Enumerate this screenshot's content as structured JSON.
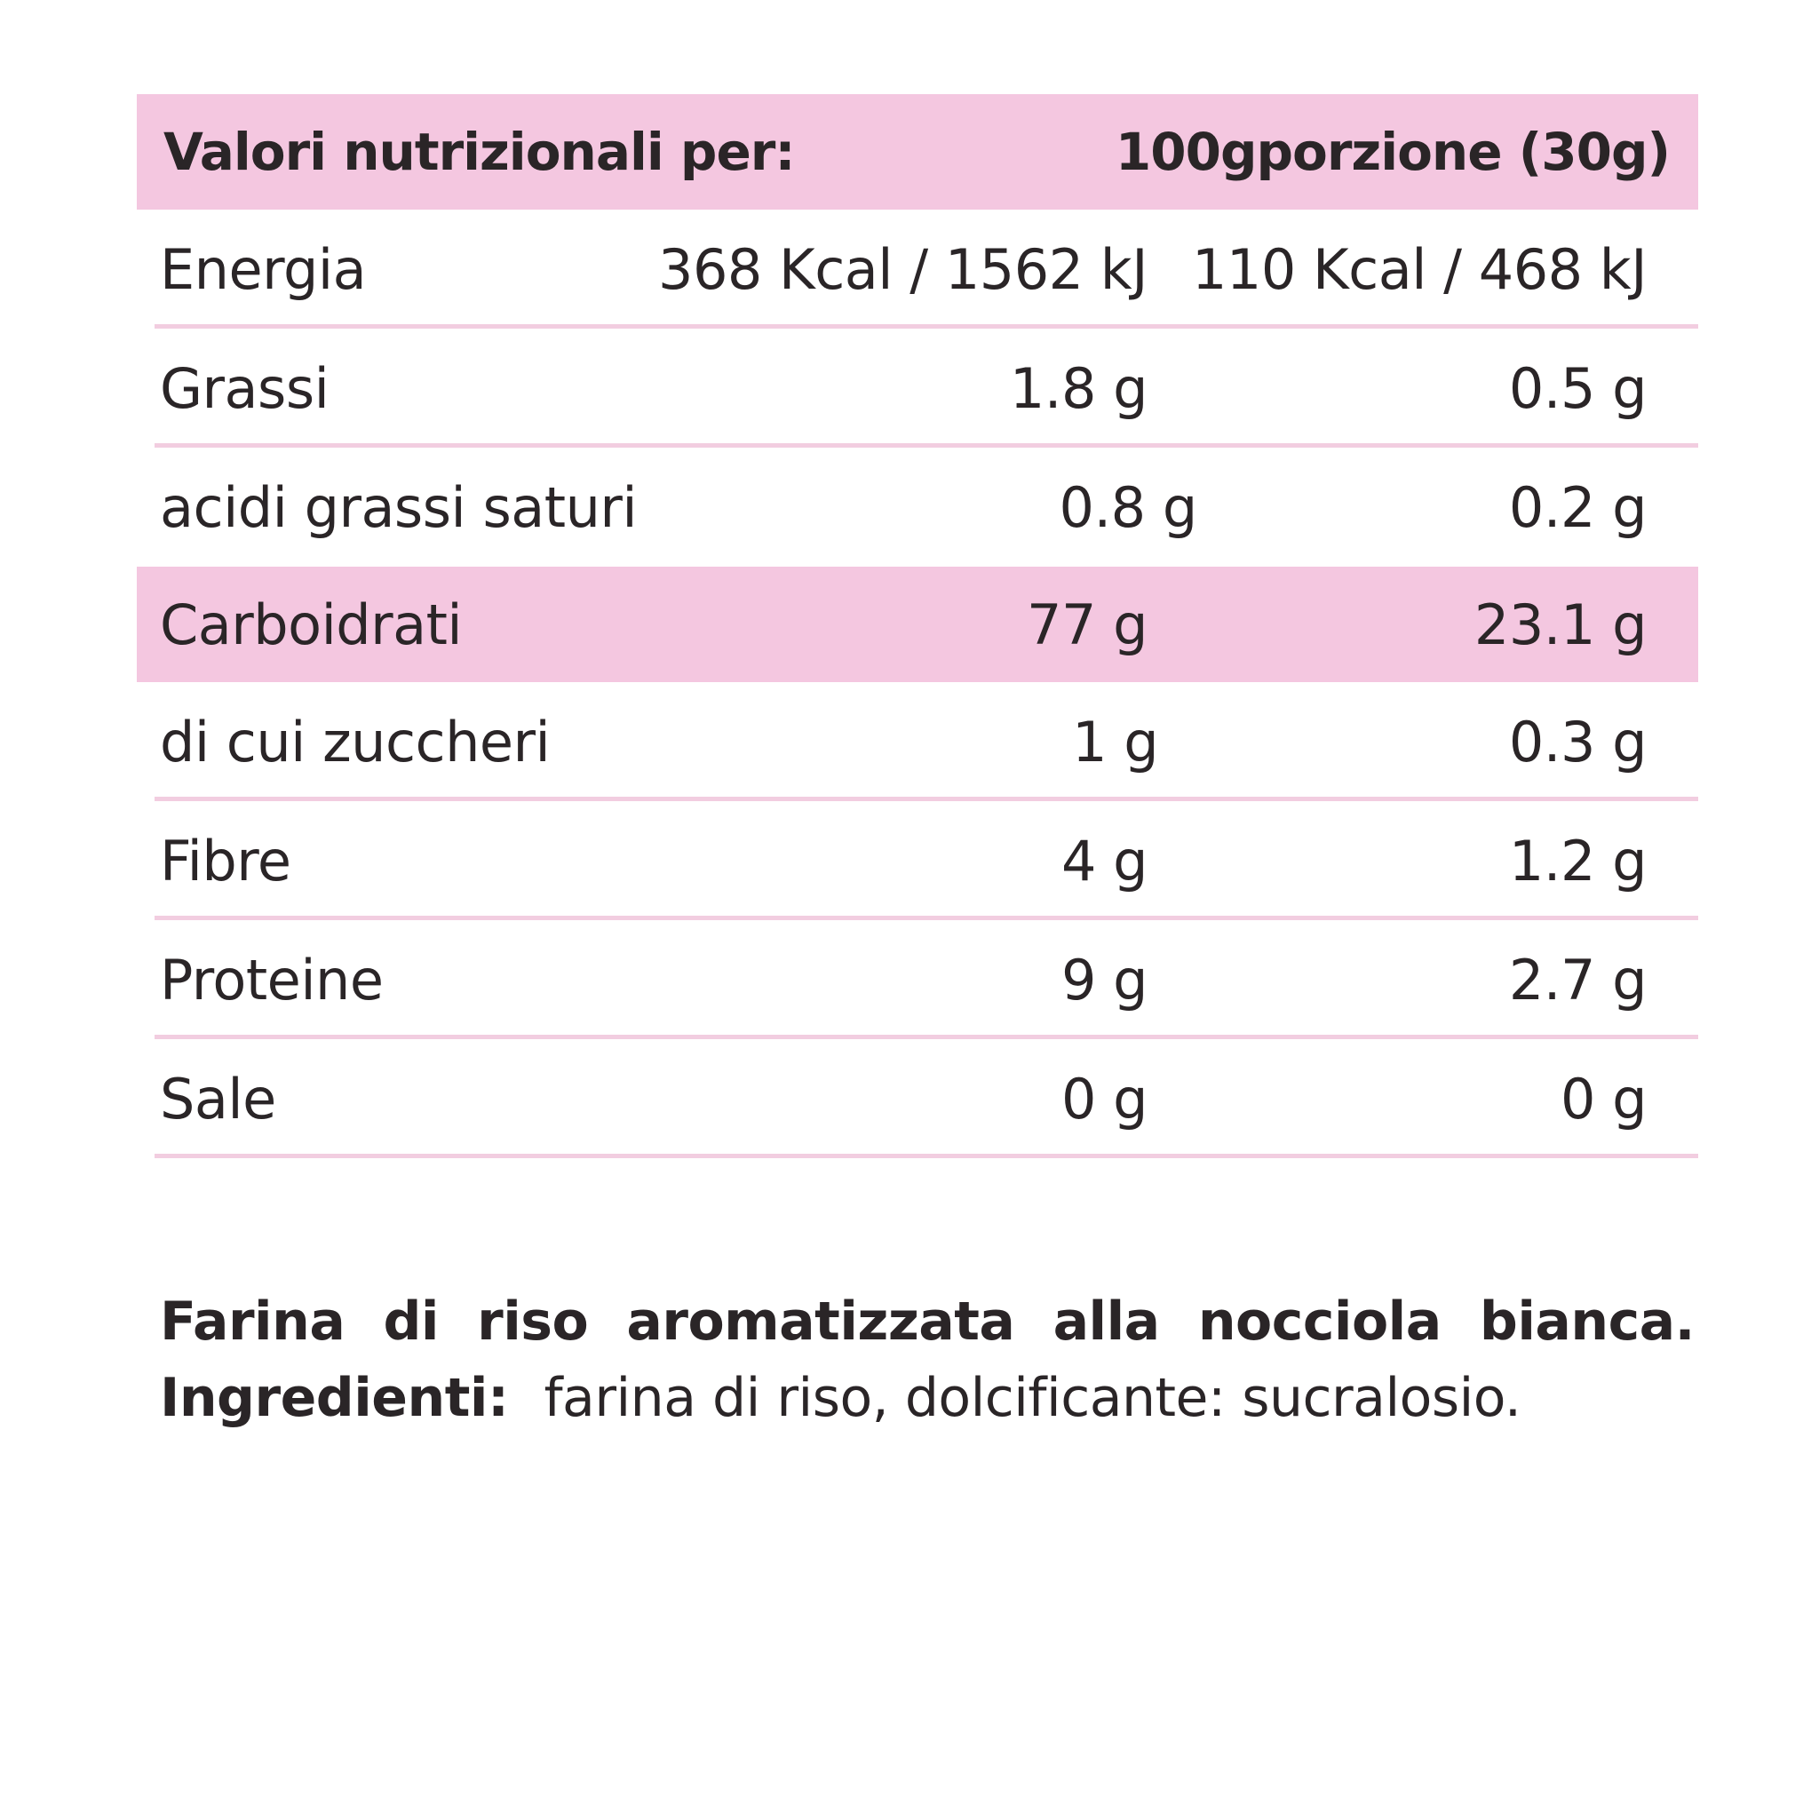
{
  "table": {
    "header": {
      "label": "Valori nutrizionali per:",
      "col_100g": "100g",
      "col_portion": "porzione (30g)"
    },
    "rows": [
      {
        "name": "Energia",
        "per_100g": "368 Kcal / 1562 kJ",
        "per_portion": "110 Kcal / 468 kJ"
      },
      {
        "name": "Grassi",
        "per_100g": "1.8 g",
        "per_portion": "0.5 g"
      },
      {
        "name": "acidi grassi saturi",
        "per_100g": "0.8 g",
        "per_portion": "0.2 g"
      },
      {
        "name": "Carboidrati",
        "per_100g": "77 g",
        "per_portion": "23.1 g"
      },
      {
        "name": "di cui zuccheri",
        "per_100g": "1 g",
        "per_portion": "0.3 g"
      },
      {
        "name": "Fibre",
        "per_100g": "4 g",
        "per_portion": "1.2 g"
      },
      {
        "name": "Proteine",
        "per_100g": "9 g",
        "per_portion": "2.7 g"
      },
      {
        "name": "Sale",
        "per_100g": "0 g",
        "per_portion": "0 g"
      }
    ]
  },
  "ingredients": {
    "description_words": [
      "Farina",
      "di",
      "riso",
      "aromatizzata",
      "alla",
      "nocciola",
      "bianca."
    ],
    "label": "Ingredienti:",
    "text": "farina di riso, dolcificante: sucralosio."
  },
  "colors": {
    "accent_pink": "#f4c7e0",
    "rule_pink": "#f2cde0",
    "text": "#2a2527",
    "background": "#ffffff"
  }
}
